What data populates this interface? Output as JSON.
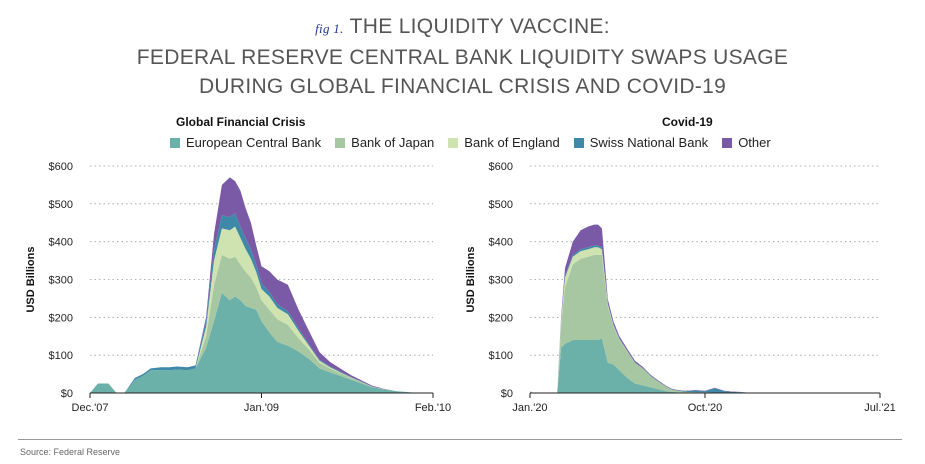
{
  "figure": {
    "tag": "fig 1.",
    "title_lines": [
      "THE LIQUIDITY VACCINE:",
      "FEDERAL RESERVE CENTRAL BANK LIQUIDITY SWAPS USAGE",
      "DURING GLOBAL FINANCIAL CRISIS AND COVID-19"
    ],
    "source": "Source: Federal Reserve"
  },
  "legend": [
    {
      "label": "European Central Bank",
      "color": "#6cb1a9"
    },
    {
      "label": "Bank of Japan",
      "color": "#a7c7a2"
    },
    {
      "label": "Bank of England",
      "color": "#cfe3b0"
    },
    {
      "label": "Swiss National Bank",
      "color": "#3f89a8"
    },
    {
      "label": "Other",
      "color": "#7a59a6"
    }
  ],
  "chart_data": [
    {
      "type": "area",
      "stacked": true,
      "title": "Global Financial Crisis",
      "ylabel": "USD Billions",
      "xlabel": "",
      "ylim": [
        0,
        600
      ],
      "yticks": [
        "$0",
        "$100",
        "$200",
        "$300",
        "$400",
        "$500",
        "$600"
      ],
      "ytick_values": [
        0,
        100,
        200,
        300,
        400,
        500,
        600
      ],
      "xticks": [
        "Dec.'07",
        "Jan.'09",
        "Feb.'10"
      ],
      "xtick_positions": [
        0,
        13,
        26
      ],
      "x": [
        0,
        0.6,
        1.4,
        2.0,
        2.6,
        3.4,
        4.0,
        4.6,
        5.4,
        6.0,
        6.6,
        7.4,
        8.0,
        8.8,
        9.4,
        10.0,
        10.6,
        11.0,
        11.4,
        11.8,
        12.2,
        12.6,
        13.0,
        13.6,
        14.2,
        15.0,
        15.8,
        16.6,
        17.4,
        18.2,
        19.0,
        19.8,
        20.6,
        21.4,
        22.2,
        23.2,
        24.2,
        25.2
      ],
      "series": [
        {
          "name": "European Central Bank",
          "values": [
            0,
            25,
            25,
            0,
            0,
            35,
            45,
            60,
            60,
            60,
            62,
            60,
            65,
            120,
            190,
            265,
            245,
            255,
            245,
            230,
            225,
            220,
            190,
            160,
            135,
            125,
            110,
            90,
            65,
            55,
            45,
            35,
            25,
            15,
            10,
            5,
            2,
            0
          ]
        },
        {
          "name": "Bank of Japan",
          "values": [
            0,
            0,
            0,
            0,
            0,
            0,
            0,
            0,
            0,
            0,
            0,
            0,
            0,
            30,
            95,
            100,
            110,
            105,
            95,
            90,
            80,
            60,
            55,
            60,
            60,
            55,
            35,
            25,
            15,
            10,
            7,
            5,
            4,
            2,
            1,
            0,
            0,
            0
          ]
        },
        {
          "name": "Bank of England",
          "values": [
            0,
            0,
            0,
            0,
            0,
            0,
            0,
            0,
            0,
            0,
            0,
            0,
            0,
            25,
            65,
            70,
            75,
            80,
            70,
            60,
            50,
            40,
            30,
            35,
            30,
            28,
            20,
            10,
            5,
            3,
            2,
            1,
            0,
            0,
            0,
            0,
            0,
            0
          ]
        },
        {
          "name": "Swiss National Bank",
          "values": [
            0,
            0,
            0,
            0,
            0,
            5,
            5,
            5,
            8,
            8,
            8,
            8,
            8,
            15,
            30,
            35,
            35,
            35,
            30,
            28,
            25,
            20,
            15,
            12,
            10,
            8,
            6,
            4,
            3,
            2,
            2,
            1,
            1,
            0,
            0,
            0,
            0,
            0
          ]
        },
        {
          "name": "Other",
          "values": [
            0,
            0,
            0,
            0,
            0,
            0,
            0,
            0,
            0,
            0,
            0,
            0,
            0,
            10,
            40,
            80,
            105,
            85,
            95,
            80,
            70,
            50,
            45,
            55,
            65,
            70,
            50,
            35,
            20,
            12,
            8,
            5,
            3,
            2,
            1,
            0,
            0,
            0
          ]
        }
      ],
      "grid": true
    },
    {
      "type": "area",
      "stacked": true,
      "title": "Covid-19",
      "ylabel": "USD Billions",
      "xlabel": "",
      "ylim": [
        0,
        600
      ],
      "yticks": [
        "$0",
        "$100",
        "$200",
        "$300",
        "$400",
        "$500",
        "$600"
      ],
      "ytick_values": [
        0,
        100,
        200,
        300,
        400,
        500,
        600
      ],
      "xticks": [
        "Jan.'20",
        "Oct.'20",
        "Jul.'21"
      ],
      "xtick_positions": [
        0,
        9,
        18
      ],
      "x": [
        0,
        0.2,
        0.5,
        1.0,
        1.4,
        1.6,
        1.8,
        2.2,
        2.6,
        3.0,
        3.3,
        3.5,
        3.7,
        4.0,
        4.3,
        4.6,
        5.0,
        5.4,
        5.8,
        6.2,
        6.6,
        7.0,
        7.3,
        7.6,
        8.0,
        8.5,
        9.0,
        9.5,
        10.0,
        10.4,
        10.8,
        11.2,
        11.6,
        12.0,
        13.0,
        14.0,
        15.0,
        16.0,
        17.0,
        18.0
      ],
      "series": [
        {
          "name": "European Central Bank",
          "values": [
            3,
            0,
            0,
            0,
            0,
            120,
            130,
            140,
            140,
            140,
            140,
            140,
            145,
            80,
            75,
            60,
            40,
            25,
            20,
            15,
            10,
            5,
            3,
            2,
            1,
            0,
            0,
            0,
            0,
            0,
            0,
            0,
            0,
            0,
            0,
            0,
            0,
            0,
            0,
            0
          ]
        },
        {
          "name": "Bank of Japan",
          "values": [
            2,
            0,
            0,
            0,
            0,
            60,
            150,
            200,
            215,
            220,
            225,
            225,
            220,
            150,
            100,
            80,
            70,
            55,
            45,
            30,
            20,
            12,
            6,
            4,
            2,
            2,
            2,
            1,
            0,
            0,
            0,
            0,
            0,
            0,
            0,
            0,
            0,
            0,
            0,
            0
          ]
        },
        {
          "name": "Bank of England",
          "values": [
            0,
            0,
            0,
            0,
            0,
            10,
            25,
            20,
            20,
            20,
            20,
            20,
            15,
            5,
            3,
            2,
            1,
            0,
            0,
            0,
            0,
            0,
            0,
            0,
            0,
            0,
            0,
            0,
            0,
            0,
            0,
            0,
            0,
            0,
            0,
            0,
            0,
            0,
            0,
            0
          ]
        },
        {
          "name": "Swiss National Bank",
          "values": [
            0,
            0,
            0,
            0,
            0,
            3,
            5,
            5,
            5,
            5,
            5,
            5,
            5,
            3,
            2,
            2,
            1,
            1,
            1,
            1,
            1,
            1,
            1,
            1,
            2,
            5,
            3,
            12,
            5,
            3,
            2,
            1,
            0,
            0,
            0,
            0,
            0,
            0,
            0,
            0
          ]
        },
        {
          "name": "Other",
          "values": [
            0,
            0,
            0,
            0,
            0,
            8,
            20,
            35,
            50,
            55,
            55,
            55,
            50,
            10,
            8,
            6,
            5,
            4,
            3,
            2,
            2,
            1,
            1,
            1,
            1,
            1,
            1,
            1,
            1,
            1,
            1,
            0,
            0,
            0,
            0,
            0,
            0,
            0,
            0,
            0
          ]
        }
      ],
      "grid": true
    }
  ]
}
